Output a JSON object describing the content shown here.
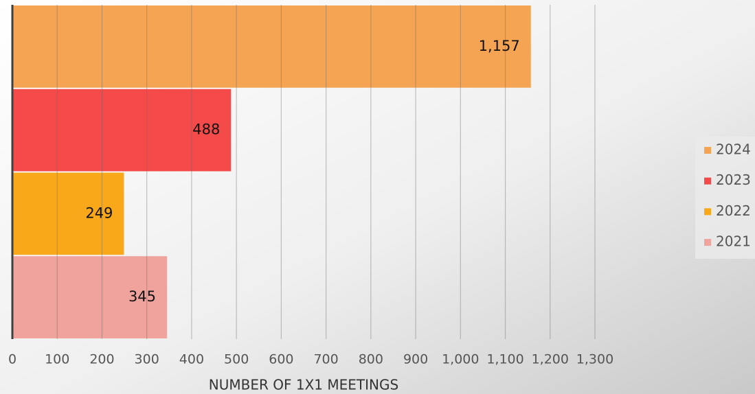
{
  "chart_data": {
    "type": "bar",
    "orientation": "horizontal",
    "categories": [
      null
    ],
    "series": [
      {
        "name": "2024",
        "color": "#f4a452",
        "values": [
          1157
        ],
        "value_labels": [
          "1,157"
        ]
      },
      {
        "name": "2023",
        "color": "#f44a4a",
        "values": [
          488
        ]
      },
      {
        "name": "2022",
        "color": "#f9a81a",
        "values": [
          249
        ]
      },
      {
        "name": "2021",
        "color": "#f0a29c",
        "values": [
          345
        ]
      }
    ],
    "x_label": "NUMBER OF 1X1 MEETINGS",
    "xlim": [
      0,
      1300
    ],
    "xticks": [
      0,
      100,
      200,
      300,
      400,
      500,
      600,
      700,
      800,
      900,
      {
        "value": 1000,
        "label": "1,000"
      },
      {
        "value": 1100,
        "label": "1,100"
      },
      {
        "value": 1200,
        "label": "1,200"
      },
      {
        "value": 1300,
        "label": "1,300"
      }
    ],
    "grid": true,
    "legend": "right"
  }
}
